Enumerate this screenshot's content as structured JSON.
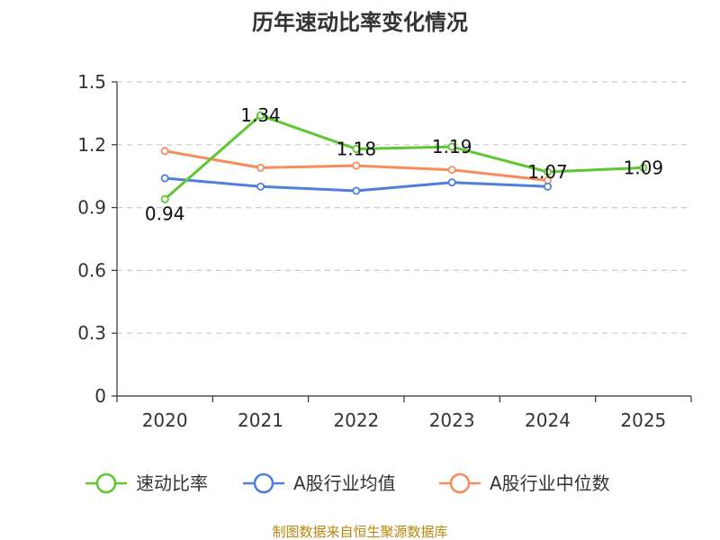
{
  "chart_data": {
    "type": "line",
    "title": "历年速动比率变化情况",
    "categories": [
      "2020",
      "2021",
      "2022",
      "2023",
      "2024",
      "2025"
    ],
    "y_ticks": [
      "0",
      "0.3",
      "0.6",
      "0.9",
      "1.2",
      "1.5"
    ],
    "ylim": [
      0,
      1.5
    ],
    "grid": true,
    "legend_position": "bottom",
    "series": [
      {
        "name": "速动比率",
        "color": "#5cc72e",
        "values": [
          0.94,
          1.34,
          1.18,
          1.19,
          1.07,
          1.09
        ],
        "labels": [
          "0.94",
          "1.34",
          "1.18",
          "1.19",
          "1.07",
          "1.09"
        ]
      },
      {
        "name": "A股行业均值",
        "color": "#4f7fdc",
        "values": [
          1.04,
          1.0,
          0.98,
          1.02,
          1.0,
          null
        ]
      },
      {
        "name": "A股行业中位数",
        "color": "#f78c5a",
        "values": [
          1.17,
          1.09,
          1.1,
          1.08,
          1.03,
          null
        ]
      }
    ],
    "source": "制图数据来自恒生聚源数据库"
  }
}
